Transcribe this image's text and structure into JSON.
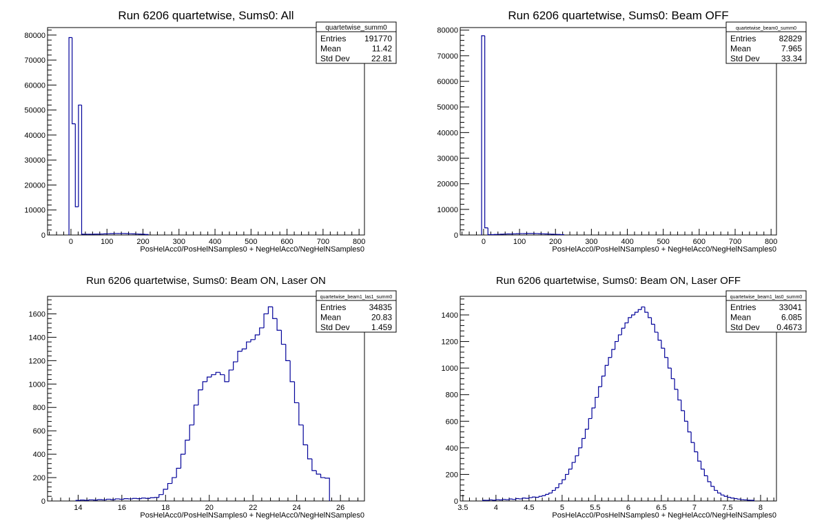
{
  "chart_data": [
    {
      "type": "histogram",
      "title": "Run 6206 quartetwise, Sums0: All",
      "xlabel": "PosHelAcc0/PosHelNSamples0 + NegHelAcc0/NegHelNSamples0",
      "ylabel": "",
      "xlim": [
        -65,
        815
      ],
      "ylim": [
        0,
        83000
      ],
      "xticks": [
        "0",
        "100",
        "200",
        "300",
        "400",
        "500",
        "600",
        "700",
        "800"
      ],
      "yticks": [
        "0",
        "10000",
        "20000",
        "30000",
        "40000",
        "50000",
        "60000",
        "70000",
        "80000"
      ],
      "stats": {
        "name": "quartetwise_summ0",
        "entries": "191770",
        "mean": "11.42",
        "std_dev": "22.81"
      },
      "bin_width": 8.8,
      "bins": [
        [
          -5.5,
          79000
        ],
        [
          3.3,
          44500
        ],
        [
          12.1,
          11300
        ],
        [
          20.9,
          52000
        ],
        [
          29.7,
          300
        ],
        [
          38.5,
          300
        ],
        [
          47.3,
          300
        ],
        [
          56.1,
          300
        ],
        [
          64.9,
          350
        ],
        [
          73.7,
          350
        ],
        [
          82.5,
          400
        ],
        [
          91.3,
          450
        ],
        [
          100.1,
          500
        ],
        [
          108.9,
          550
        ],
        [
          117.7,
          600
        ],
        [
          126.5,
          600
        ],
        [
          135.3,
          600
        ],
        [
          144.1,
          600
        ],
        [
          152.9,
          550
        ],
        [
          161.7,
          500
        ],
        [
          170.5,
          450
        ],
        [
          179.3,
          400
        ],
        [
          188.1,
          350
        ],
        [
          196.9,
          300
        ],
        [
          205.7,
          200
        ]
      ]
    },
    {
      "type": "histogram",
      "title": "Run 6206 quartetwise, Sums0: Beam OFF",
      "xlabel": "PosHelAcc0/PosHelNSamples0 + NegHelAcc0/NegHelNSamples0",
      "ylabel": "",
      "xlim": [
        -65,
        815
      ],
      "ylim": [
        0,
        81000
      ],
      "xticks": [
        "0",
        "100",
        "200",
        "300",
        "400",
        "500",
        "600",
        "700",
        "800"
      ],
      "yticks": [
        "0",
        "10000",
        "20000",
        "30000",
        "40000",
        "50000",
        "60000",
        "70000",
        "80000"
      ],
      "stats": {
        "name": "quartetwise_beam0_summ0",
        "entries": "82829",
        "mean": "7.965",
        "std_dev": "33.34"
      },
      "bin_width": 8.8,
      "bins": [
        [
          -5.5,
          77800
        ],
        [
          3.3,
          2800
        ],
        [
          12.1,
          150
        ],
        [
          20.9,
          150
        ],
        [
          29.7,
          200
        ],
        [
          38.5,
          250
        ],
        [
          47.3,
          300
        ],
        [
          56.1,
          350
        ],
        [
          64.9,
          400
        ],
        [
          73.7,
          400
        ],
        [
          82.5,
          450
        ],
        [
          91.3,
          500
        ],
        [
          100.1,
          550
        ],
        [
          108.9,
          550
        ],
        [
          117.7,
          600
        ],
        [
          126.5,
          600
        ],
        [
          135.3,
          600
        ],
        [
          144.1,
          550
        ],
        [
          152.9,
          500
        ],
        [
          161.7,
          450
        ],
        [
          170.5,
          400
        ],
        [
          179.3,
          350
        ],
        [
          188.1,
          300
        ],
        [
          196.9,
          250
        ],
        [
          205.7,
          200
        ],
        [
          214.5,
          150
        ]
      ]
    },
    {
      "type": "histogram",
      "title": "Run 6206 quartetwise, Sums0: Beam ON, Laser ON",
      "xlabel": "PosHelAcc0/PosHelNSamples0 + NegHelAcc0/NegHelNSamples0",
      "ylabel": "",
      "xlim": [
        12.6,
        27.1
      ],
      "ylim": [
        0,
        1750
      ],
      "xticks": [
        "14",
        "16",
        "18",
        "20",
        "22",
        "24",
        "26"
      ],
      "yticks": [
        "0",
        "200",
        "400",
        "600",
        "800",
        "1000",
        "1200",
        "1400",
        "1600"
      ],
      "stats": {
        "name": "quartetwise_beam1_las1_summ0",
        "entries": "34835",
        "mean": "20.83",
        "std_dev": "1.459"
      },
      "bin_width": 0.2,
      "bins": [
        [
          13.9,
          5
        ],
        [
          14.1,
          8
        ],
        [
          14.3,
          6
        ],
        [
          14.5,
          10
        ],
        [
          14.7,
          8
        ],
        [
          14.9,
          12
        ],
        [
          15.1,
          10
        ],
        [
          15.3,
          15
        ],
        [
          15.5,
          12
        ],
        [
          15.7,
          18
        ],
        [
          15.9,
          15
        ],
        [
          16.1,
          20
        ],
        [
          16.3,
          18
        ],
        [
          16.5,
          22
        ],
        [
          16.7,
          20
        ],
        [
          16.9,
          25
        ],
        [
          17.1,
          22
        ],
        [
          17.3,
          28
        ],
        [
          17.5,
          30
        ],
        [
          17.7,
          55
        ],
        [
          17.9,
          100
        ],
        [
          18.1,
          150
        ],
        [
          18.3,
          200
        ],
        [
          18.5,
          280
        ],
        [
          18.7,
          400
        ],
        [
          18.9,
          520
        ],
        [
          19.1,
          650
        ],
        [
          19.3,
          820
        ],
        [
          19.5,
          950
        ],
        [
          19.7,
          1020
        ],
        [
          19.9,
          1060
        ],
        [
          20.1,
          1080
        ],
        [
          20.3,
          1100
        ],
        [
          20.5,
          1080
        ],
        [
          20.7,
          1020
        ],
        [
          20.9,
          1120
        ],
        [
          21.1,
          1190
        ],
        [
          21.3,
          1280
        ],
        [
          21.5,
          1300
        ],
        [
          21.7,
          1360
        ],
        [
          21.9,
          1380
        ],
        [
          22.1,
          1420
        ],
        [
          22.3,
          1480
        ],
        [
          22.5,
          1600
        ],
        [
          22.7,
          1660
        ],
        [
          22.9,
          1560
        ],
        [
          23.1,
          1460
        ],
        [
          23.3,
          1340
        ],
        [
          23.5,
          1200
        ],
        [
          23.7,
          1020
        ],
        [
          23.9,
          840
        ],
        [
          24.1,
          650
        ],
        [
          24.3,
          480
        ],
        [
          24.5,
          360
        ],
        [
          24.7,
          260
        ],
        [
          24.9,
          230
        ],
        [
          25.1,
          200
        ],
        [
          25.3,
          195
        ]
      ]
    },
    {
      "type": "histogram",
      "title": "Run 6206 quartetwise, Sums0: Beam ON, Laser OFF",
      "xlabel": "PosHelAcc0/PosHelNSamples0 + NegHelAcc0/NegHelNSamples0",
      "ylabel": "",
      "xlim": [
        3.46,
        8.24
      ],
      "ylim": [
        0,
        1540
      ],
      "xticks": [
        "3.5",
        "4",
        "4.5",
        "5",
        "5.5",
        "6",
        "6.5",
        "7",
        "7.5",
        "8"
      ],
      "yticks": [
        "0",
        "200",
        "400",
        "600",
        "800",
        "1000",
        "1200",
        "1400"
      ],
      "stats": {
        "name": "quartetwise_beam1_las0_summ0",
        "entries": "33041",
        "mean": "6.085",
        "std_dev": "0.4673"
      },
      "bin_width": 0.05,
      "bins": [
        [
          3.8,
          5
        ],
        [
          3.85,
          5
        ],
        [
          3.9,
          8
        ],
        [
          3.95,
          6
        ],
        [
          4.0,
          10
        ],
        [
          4.05,
          8
        ],
        [
          4.1,
          12
        ],
        [
          4.15,
          10
        ],
        [
          4.2,
          15
        ],
        [
          4.25,
          12
        ],
        [
          4.3,
          18
        ],
        [
          4.35,
          16
        ],
        [
          4.4,
          22
        ],
        [
          4.45,
          20
        ],
        [
          4.5,
          25
        ],
        [
          4.55,
          30
        ],
        [
          4.6,
          28
        ],
        [
          4.65,
          35
        ],
        [
          4.7,
          40
        ],
        [
          4.75,
          50
        ],
        [
          4.8,
          60
        ],
        [
          4.85,
          80
        ],
        [
          4.9,
          100
        ],
        [
          4.95,
          130
        ],
        [
          5.0,
          160
        ],
        [
          5.05,
          200
        ],
        [
          5.1,
          240
        ],
        [
          5.15,
          290
        ],
        [
          5.2,
          340
        ],
        [
          5.25,
          400
        ],
        [
          5.3,
          470
        ],
        [
          5.35,
          540
        ],
        [
          5.4,
          620
        ],
        [
          5.45,
          700
        ],
        [
          5.5,
          780
        ],
        [
          5.55,
          860
        ],
        [
          5.6,
          940
        ],
        [
          5.65,
          1020
        ],
        [
          5.7,
          1080
        ],
        [
          5.75,
          1140
        ],
        [
          5.8,
          1200
        ],
        [
          5.85,
          1250
        ],
        [
          5.9,
          1300
        ],
        [
          5.95,
          1340
        ],
        [
          6.0,
          1380
        ],
        [
          6.05,
          1400
        ],
        [
          6.1,
          1420
        ],
        [
          6.15,
          1440
        ],
        [
          6.2,
          1460
        ],
        [
          6.25,
          1420
        ],
        [
          6.3,
          1380
        ],
        [
          6.35,
          1330
        ],
        [
          6.4,
          1270
        ],
        [
          6.45,
          1210
        ],
        [
          6.5,
          1150
        ],
        [
          6.55,
          1080
        ],
        [
          6.6,
          1000
        ],
        [
          6.65,
          920
        ],
        [
          6.7,
          840
        ],
        [
          6.75,
          760
        ],
        [
          6.8,
          680
        ],
        [
          6.85,
          600
        ],
        [
          6.9,
          520
        ],
        [
          6.95,
          440
        ],
        [
          7.0,
          370
        ],
        [
          7.05,
          300
        ],
        [
          7.1,
          240
        ],
        [
          7.15,
          190
        ],
        [
          7.2,
          145
        ],
        [
          7.25,
          110
        ],
        [
          7.3,
          80
        ],
        [
          7.35,
          60
        ],
        [
          7.4,
          45
        ],
        [
          7.45,
          35
        ],
        [
          7.5,
          28
        ],
        [
          7.55,
          22
        ],
        [
          7.6,
          18
        ],
        [
          7.65,
          14
        ],
        [
          7.7,
          10
        ],
        [
          7.75,
          8
        ],
        [
          7.8,
          6
        ],
        [
          7.85,
          5
        ]
      ]
    }
  ]
}
